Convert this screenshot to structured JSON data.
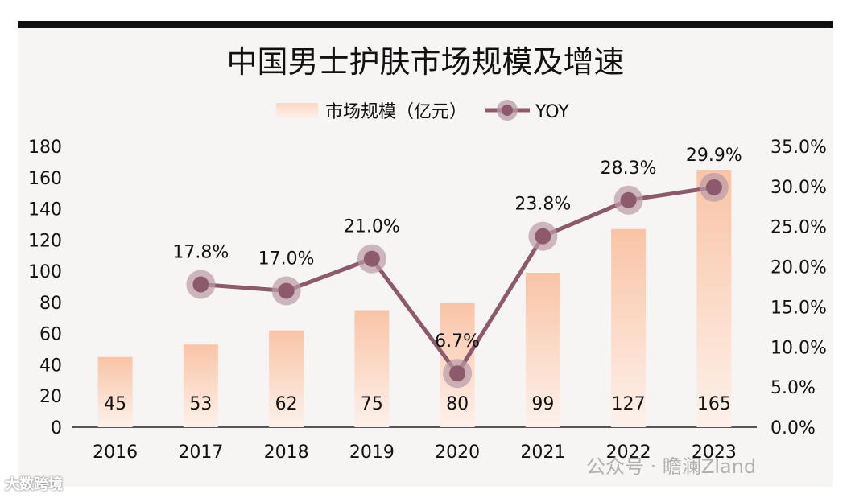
{
  "chart_data": {
    "type": "bar+line",
    "title": "中国男士护肤市场规模及增速",
    "categories": [
      "2016",
      "2017",
      "2018",
      "2019",
      "2020",
      "2021",
      "2022",
      "2023"
    ],
    "series": [
      {
        "name": "市场规模（亿元）",
        "type": "bar",
        "axis": "left",
        "values": [
          45,
          53,
          62,
          75,
          80,
          99,
          127,
          165
        ],
        "labels": [
          "45",
          "53",
          "62",
          "75",
          "80",
          "99",
          "127",
          "165"
        ]
      },
      {
        "name": "YOY",
        "type": "line",
        "axis": "right",
        "values": [
          null,
          17.8,
          17.0,
          21.0,
          6.7,
          23.8,
          28.3,
          29.9
        ],
        "labels": [
          "",
          "17.8%",
          "17.0%",
          "21.0%",
          "6.7%",
          "23.8%",
          "28.3%",
          "29.9%"
        ]
      }
    ],
    "y_left": {
      "min": 0,
      "max": 180,
      "step": 20,
      "ticks": [
        "0",
        "20",
        "40",
        "60",
        "80",
        "100",
        "120",
        "140",
        "160",
        "180"
      ]
    },
    "y_right": {
      "min": 0,
      "max": 35,
      "step": 5,
      "ticks": [
        "0.0%",
        "5.0%",
        "10.0%",
        "15.0%",
        "20.0%",
        "25.0%",
        "30.0%",
        "35.0%"
      ]
    },
    "legend": {
      "placement": "top-center",
      "bar_label": "市场规模（亿元）",
      "line_label": "YOY"
    },
    "grid": false,
    "colors": {
      "bar_top": "#f9c4a6",
      "bar_bottom": "#fdf0e8",
      "line": "#8c5a6c",
      "marker_halo": "#b99aa5",
      "background": "#f7f5f3"
    }
  },
  "watermarks": {
    "right": "公众号 · 瞻澜Zland",
    "left": "大数跨境"
  }
}
